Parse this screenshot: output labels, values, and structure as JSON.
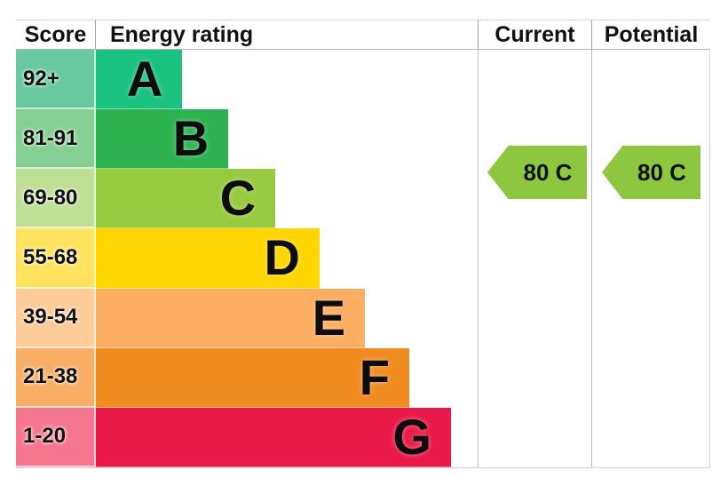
{
  "header": {
    "score": "Score",
    "energy_rating": "Energy rating",
    "current": "Current",
    "potential": "Potential"
  },
  "bands": [
    {
      "score_range": "92+",
      "letter": "A",
      "bar_color": "#1bc17e",
      "tint_color": "#68c8a0",
      "width_pct": 22.6
    },
    {
      "score_range": "81-91",
      "letter": "B",
      "bar_color": "#2cb24f",
      "tint_color": "#85cf92",
      "width_pct": 34.7
    },
    {
      "score_range": "69-80",
      "letter": "C",
      "bar_color": "#97ca3f",
      "tint_color": "#bfe094",
      "width_pct": 47.0
    },
    {
      "score_range": "55-68",
      "letter": "D",
      "bar_color": "#ffd502",
      "tint_color": "#ffe35e",
      "width_pct": 58.6
    },
    {
      "score_range": "39-54",
      "letter": "E",
      "bar_color": "#fbad61",
      "tint_color": "#fdcc99",
      "width_pct": 70.5
    },
    {
      "score_range": "21-38",
      "letter": "F",
      "bar_color": "#f08b1f",
      "tint_color": "#f8ae64",
      "width_pct": 82.1
    },
    {
      "score_range": "1-20",
      "letter": "G",
      "bar_color": "#e91a49",
      "tint_color": "#f4778f",
      "width_pct": 93.0
    }
  ],
  "current_arrow": {
    "label": "80 C",
    "color": "#8dc63f"
  },
  "potential_arrow": {
    "label": "80 C",
    "color": "#8dc63f"
  },
  "chart_data": {
    "type": "bar",
    "title": "Energy rating",
    "columns": [
      "Score",
      "Energy rating",
      "Current",
      "Potential"
    ],
    "categories": [
      "A",
      "B",
      "C",
      "D",
      "E",
      "F",
      "G"
    ],
    "score_ranges": [
      "92+",
      "81-91",
      "69-80",
      "55-68",
      "39-54",
      "21-38",
      "1-20"
    ],
    "bar_length_pct": [
      22.6,
      34.7,
      47.0,
      58.6,
      70.5,
      82.1,
      93.0
    ],
    "band_colors": [
      "#1bc17e",
      "#2cb24f",
      "#97ca3f",
      "#ffd502",
      "#fbad61",
      "#f08b1f",
      "#e91a49"
    ],
    "current": {
      "score": 80,
      "band": "C",
      "label": "80 C"
    },
    "potential": {
      "score": 80,
      "band": "C",
      "label": "80 C"
    },
    "legend_position": "none",
    "grid": false
  }
}
